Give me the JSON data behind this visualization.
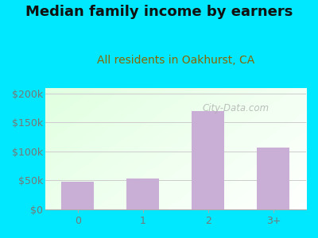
{
  "title": "Median family income by earners",
  "subtitle": "All residents in Oakhurst, CA",
  "categories": [
    "0",
    "1",
    "2",
    "3+"
  ],
  "values": [
    48000,
    53000,
    170000,
    107000
  ],
  "bar_color": "#c9aed6",
  "background_outer": "#00e8ff",
  "ylim": [
    0,
    210000
  ],
  "yticks": [
    0,
    50000,
    100000,
    150000,
    200000
  ],
  "ytick_labels": [
    "$0",
    "$50k",
    "$100k",
    "$150k",
    "$200k"
  ],
  "title_fontsize": 13,
  "subtitle_fontsize": 10,
  "watermark": "City-Data.com",
  "tick_color": "#777777",
  "subtitle_color": "#886600",
  "grid_color": "#cccccc"
}
